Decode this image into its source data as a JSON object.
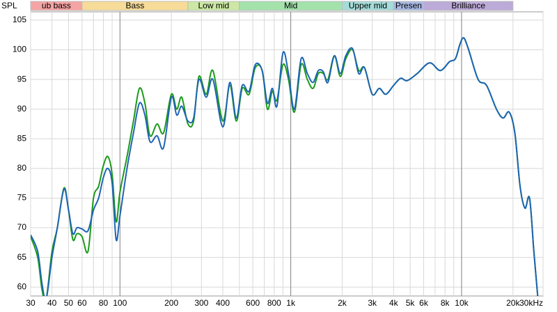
{
  "chart_data": {
    "type": "line",
    "y_label": "SPL",
    "xscale": "log",
    "xlim": [
      30,
      30000
    ],
    "ylim": [
      58.5,
      106.4
    ],
    "xticks": [
      30,
      40,
      50,
      60,
      80,
      100,
      200,
      300,
      400,
      600,
      800,
      {
        "value": 1000,
        "label": "1k"
      },
      {
        "value": 2000,
        "label": "2k"
      },
      {
        "value": 3000,
        "label": "3k"
      },
      {
        "value": 4000,
        "label": "4k"
      },
      {
        "value": 5000,
        "label": "5k"
      },
      {
        "value": 6000,
        "label": "6k"
      },
      {
        "value": 8000,
        "label": "8k"
      },
      {
        "value": 10000,
        "label": "10k"
      },
      {
        "value": 20000,
        "label": "20k"
      },
      {
        "value": 30000,
        "label": "30kHz"
      }
    ],
    "x_minor_ticks": [
      70,
      90,
      500,
      700,
      900,
      7000,
      9000
    ],
    "yticks": [
      60,
      65,
      70,
      75,
      80,
      85,
      90,
      95,
      100,
      105
    ],
    "grid": true,
    "bands": [
      {
        "name": "ub bass",
        "from": 30,
        "to": 60,
        "color": "#f4a4a4"
      },
      {
        "name": "Bass",
        "from": 60,
        "to": 250,
        "color": "#f6dc98"
      },
      {
        "name": "Low mid",
        "from": 250,
        "to": 500,
        "color": "#cce8a4"
      },
      {
        "name": "Mid",
        "from": 500,
        "to": 2000,
        "color": "#a4e2ac"
      },
      {
        "name": "Upper mid",
        "from": 2000,
        "to": 4000,
        "color": "#a4dcd8"
      },
      {
        "name": "Presen",
        "from": 4000,
        "to": 6000,
        "color": "#a8b8e2"
      },
      {
        "name": "Brilliance",
        "from": 6000,
        "to": 20000,
        "color": "#bcaad8"
      }
    ],
    "x": [
      30,
      33,
      35,
      37,
      40,
      43,
      47,
      50,
      53,
      56,
      60,
      65,
      70,
      75,
      80,
      85,
      90,
      95,
      100,
      110,
      120,
      130,
      140,
      150,
      165,
      180,
      200,
      215,
      230,
      250,
      270,
      290,
      320,
      350,
      400,
      440,
      480,
      520,
      570,
      620,
      680,
      730,
      780,
      830,
      900,
      970,
      1050,
      1150,
      1250,
      1350,
      1450,
      1550,
      1650,
      1800,
      1950,
      2100,
      2300,
      2500,
      2700,
      3000,
      3300,
      3600,
      4000,
      4400,
      4800,
      5500,
      6500,
      7500,
      8500,
      9200,
      9800,
      10300,
      11000,
      12500,
      14000,
      16000,
      17500,
      19000,
      20500,
      22000,
      23500,
      25000,
      26500,
      28000
    ],
    "series": [
      {
        "color": "#1a9a1a",
        "values": [
          68.5,
          65,
          59.5,
          58,
          66,
          70,
          76.7,
          73,
          68,
          69,
          68.5,
          66,
          75,
          77,
          80.5,
          82,
          79,
          71,
          76,
          82,
          88,
          93.5,
          91,
          85.5,
          87.5,
          86,
          92.5,
          90,
          92,
          87.5,
          88,
          95.5,
          92.5,
          96.5,
          88,
          94,
          88,
          93.5,
          92.5,
          97,
          96.5,
          90,
          93,
          91.5,
          97.5,
          95,
          89.5,
          97.5,
          95,
          93.5,
          96,
          96,
          95,
          99,
          95.5,
          98.5,
          100,
          96.5,
          97,
          92.5,
          93.5,
          92.5,
          94,
          95.2,
          94.8,
          96,
          97.8,
          96.5,
          98,
          98.5,
          101,
          102,
          100,
          95,
          94,
          90,
          88.5,
          89.5,
          86,
          77,
          73.3,
          75,
          66,
          58
        ]
      },
      {
        "color": "#1e64b4",
        "values": [
          68.8,
          66,
          60.5,
          58,
          65,
          70,
          76.5,
          73,
          69,
          70,
          69.8,
          69.5,
          73,
          75,
          78.5,
          80,
          77.5,
          68,
          72,
          80,
          86,
          91,
          89,
          84.5,
          85.5,
          83.5,
          92,
          89,
          90.5,
          88,
          88.5,
          95,
          92,
          95,
          87,
          94.5,
          88.5,
          94,
          93,
          97.5,
          96.5,
          91,
          93.5,
          90.5,
          99.5,
          96,
          90,
          98.5,
          96,
          94.5,
          96.5,
          96.3,
          94.5,
          99,
          96,
          99,
          100.2,
          96,
          97,
          92.5,
          93.5,
          92.5,
          94,
          95.2,
          94.8,
          96,
          97.8,
          96.5,
          98,
          98.5,
          101,
          102,
          100,
          95,
          94,
          90,
          88.5,
          89.5,
          86,
          77,
          73.3,
          75,
          66,
          58
        ]
      }
    ]
  }
}
